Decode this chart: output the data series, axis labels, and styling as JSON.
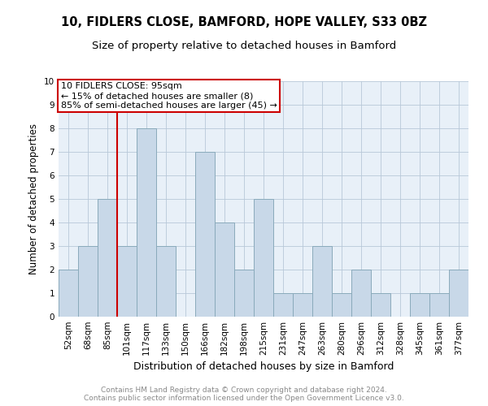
{
  "title": "10, FIDLERS CLOSE, BAMFORD, HOPE VALLEY, S33 0BZ",
  "subtitle": "Size of property relative to detached houses in Bamford",
  "xlabel": "Distribution of detached houses by size in Bamford",
  "ylabel": "Number of detached properties",
  "categories": [
    "52sqm",
    "68sqm",
    "85sqm",
    "101sqm",
    "117sqm",
    "133sqm",
    "150sqm",
    "166sqm",
    "182sqm",
    "198sqm",
    "215sqm",
    "231sqm",
    "247sqm",
    "263sqm",
    "280sqm",
    "296sqm",
    "312sqm",
    "328sqm",
    "345sqm",
    "361sqm",
    "377sqm"
  ],
  "values": [
    2,
    3,
    5,
    3,
    8,
    3,
    0,
    7,
    4,
    2,
    5,
    1,
    1,
    3,
    1,
    2,
    1,
    0,
    1,
    1,
    2
  ],
  "bar_color": "#c8d8e8",
  "bar_edge_color": "#8aaabb",
  "grid_color": "#b8c8d8",
  "bg_color": "#e8f0f8",
  "annotation_box_text": "10 FIDLERS CLOSE: 95sqm\n← 15% of detached houses are smaller (8)\n85% of semi-detached houses are larger (45) →",
  "annotation_box_color": "#cc0000",
  "vline_x": 2.5,
  "vline_color": "#cc0000",
  "ylim": [
    0,
    10
  ],
  "yticks": [
    0,
    1,
    2,
    3,
    4,
    5,
    6,
    7,
    8,
    9,
    10
  ],
  "footer_text": "Contains HM Land Registry data © Crown copyright and database right 2024.\nContains public sector information licensed under the Open Government Licence v3.0.",
  "title_fontsize": 10.5,
  "subtitle_fontsize": 9.5,
  "xlabel_fontsize": 9,
  "ylabel_fontsize": 8.5,
  "tick_fontsize": 7.5,
  "footer_fontsize": 6.5,
  "ann_fontsize": 8
}
